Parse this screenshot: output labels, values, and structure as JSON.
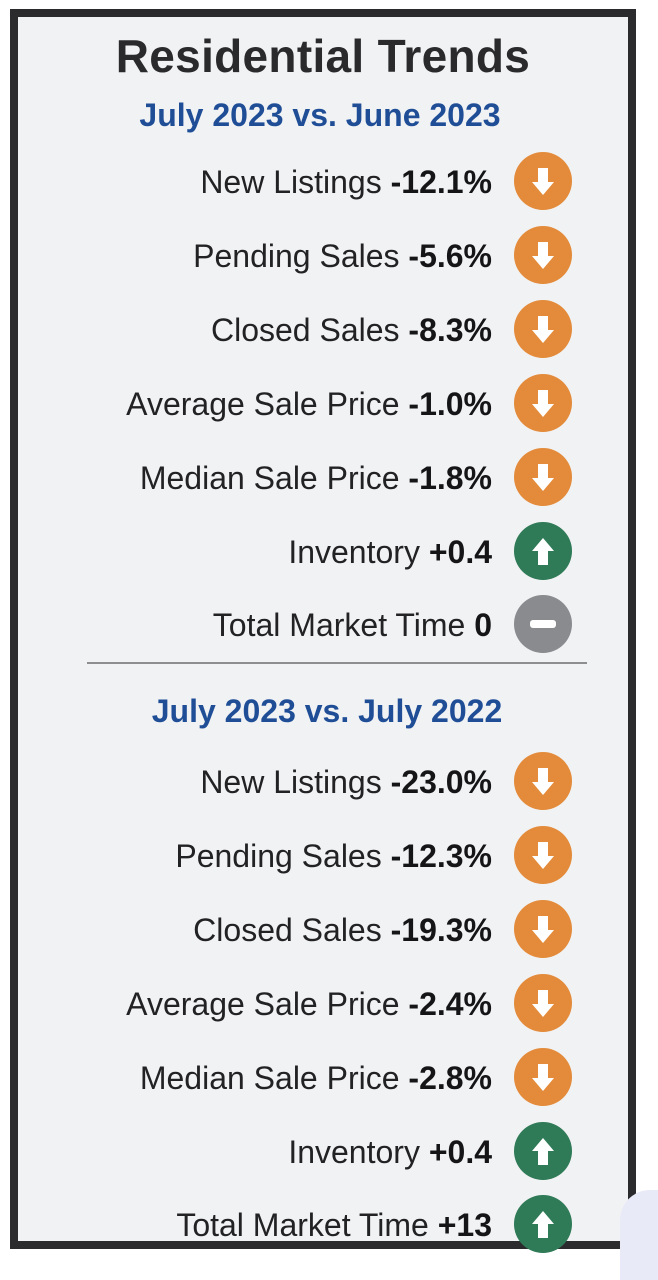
{
  "title": "Residential Trends",
  "sections": [
    {
      "subtitle": "July 2023 vs. June 2023",
      "rows": [
        {
          "label": "New Listings",
          "value": "-12.1%",
          "trend": "down",
          "icon": "down-arrow-icon"
        },
        {
          "label": "Pending Sales",
          "value": "-5.6%",
          "trend": "down",
          "icon": "down-arrow-icon"
        },
        {
          "label": "Closed Sales",
          "value": "-8.3%",
          "trend": "down",
          "icon": "down-arrow-icon"
        },
        {
          "label": "Average Sale Price",
          "value": "-1.0%",
          "trend": "down",
          "icon": "down-arrow-icon"
        },
        {
          "label": "Median Sale Price",
          "value": "-1.8%",
          "trend": "down",
          "icon": "down-arrow-icon"
        },
        {
          "label": "Inventory",
          "value": "+0.4",
          "trend": "up",
          "icon": "up-arrow-icon"
        },
        {
          "label": "Total Market Time",
          "value": "0",
          "trend": "flat",
          "icon": "minus-icon"
        }
      ]
    },
    {
      "subtitle": "July 2023 vs. July 2022",
      "rows": [
        {
          "label": "New Listings",
          "value": "-23.0%",
          "trend": "down",
          "icon": "down-arrow-icon"
        },
        {
          "label": "Pending Sales",
          "value": "-12.3%",
          "trend": "down",
          "icon": "down-arrow-icon"
        },
        {
          "label": "Closed Sales",
          "value": "-19.3%",
          "trend": "down",
          "icon": "down-arrow-icon"
        },
        {
          "label": "Average Sale Price",
          "value": "-2.4%",
          "trend": "down",
          "icon": "down-arrow-icon"
        },
        {
          "label": "Median Sale Price",
          "value": "-2.8%",
          "trend": "down",
          "icon": "down-arrow-icon"
        },
        {
          "label": "Inventory",
          "value": "+0.4",
          "trend": "up",
          "icon": "up-arrow-icon"
        },
        {
          "label": "Total Market Time",
          "value": "+13",
          "trend": "up",
          "icon": "up-arrow-icon"
        }
      ]
    }
  ],
  "colors": {
    "down": "#e38b3a",
    "up": "#2f7a57",
    "flat": "#8a8b8e",
    "subtitle": "#1f4e97",
    "frame": "#2b2b2d"
  }
}
